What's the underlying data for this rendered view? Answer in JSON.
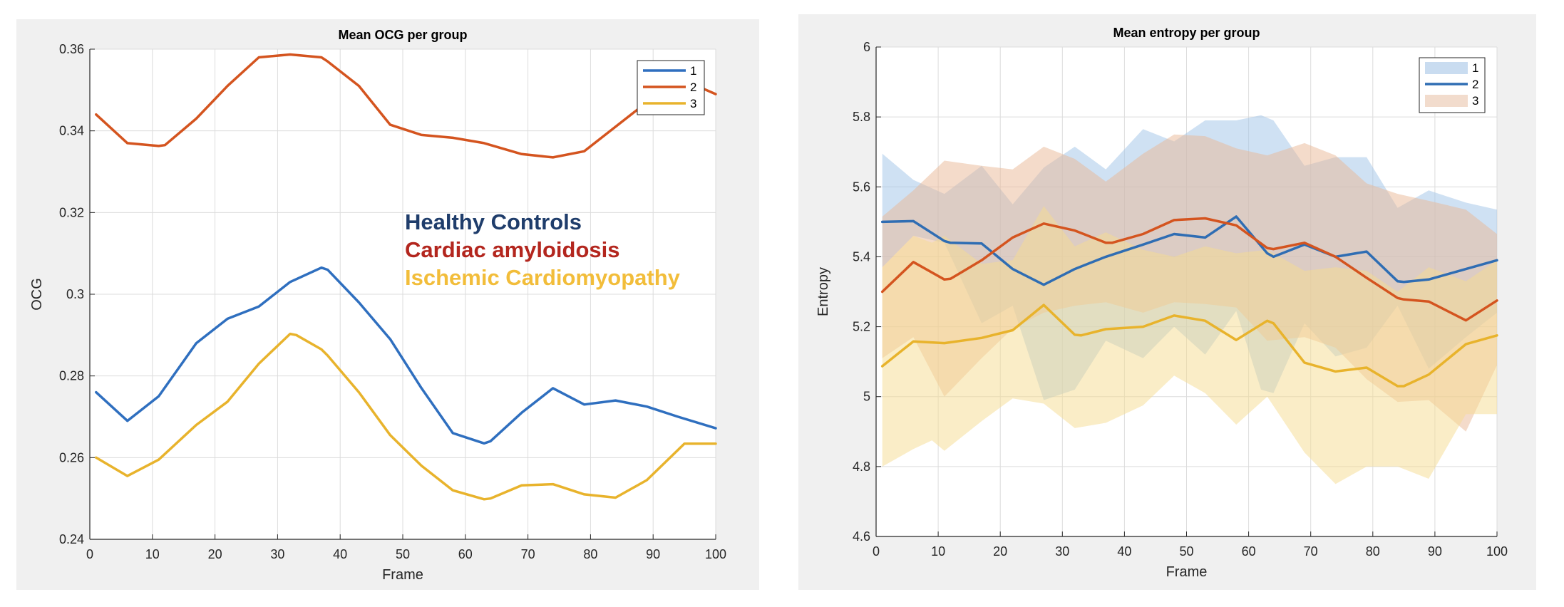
{
  "chart_data": [
    {
      "type": "line",
      "title": "Mean OCG per group",
      "xlabel": "Frame",
      "ylabel": "OCG",
      "xlim": [
        0,
        100
      ],
      "ylim": [
        0.24,
        0.36
      ],
      "xticks": [
        "0",
        "10",
        "20",
        "30",
        "40",
        "50",
        "60",
        "70",
        "80",
        "90",
        "100"
      ],
      "yticks": [
        "0.24",
        "0.26",
        "0.28",
        "0.3",
        "0.32",
        "0.34",
        "0.36"
      ],
      "grid": true,
      "legend_position": "top-right",
      "legend": [
        "1",
        "2",
        "3"
      ],
      "annotations": [
        {
          "text": "Healthy Controls",
          "color": "#1f3d6b"
        },
        {
          "text": "Cardiac amyloidosis",
          "color": "#b3261e"
        },
        {
          "text": "Ischemic Cardiomyopathy",
          "color": "#f2bd3a"
        }
      ],
      "series": [
        {
          "name": "1",
          "color": "#2f6fbf",
          "x": [
            1,
            6,
            11,
            17,
            22,
            27,
            32,
            37,
            38,
            43,
            48,
            53,
            58,
            60,
            63,
            64,
            69,
            74,
            79,
            84,
            89,
            94,
            100
          ],
          "y": [
            0.276,
            0.269,
            0.275,
            0.288,
            0.294,
            0.297,
            0.303,
            0.3065,
            0.306,
            0.298,
            0.289,
            0.277,
            0.266,
            0.265,
            0.2635,
            0.264,
            0.271,
            0.277,
            0.273,
            0.274,
            0.2725,
            0.27,
            0.2672
          ]
        },
        {
          "name": "2",
          "color": "#d4541f",
          "x": [
            1,
            6,
            11,
            12,
            17,
            22,
            27,
            32,
            37,
            38,
            43,
            48,
            53,
            58,
            63,
            69,
            74,
            79,
            84,
            89,
            94,
            100
          ],
          "y": [
            0.344,
            0.337,
            0.3363,
            0.3365,
            0.343,
            0.351,
            0.358,
            0.3587,
            0.358,
            0.357,
            0.351,
            0.3415,
            0.339,
            0.3383,
            0.337,
            0.3343,
            0.3335,
            0.335,
            0.341,
            0.347,
            0.353,
            0.349
          ]
        },
        {
          "name": "3",
          "color": "#e8b32c",
          "x": [
            1,
            6,
            11,
            17,
            22,
            27,
            32,
            33,
            37,
            38,
            43,
            48,
            53,
            58,
            63,
            64,
            69,
            74,
            79,
            84,
            89,
            95,
            100
          ],
          "y": [
            0.26,
            0.2555,
            0.2595,
            0.268,
            0.2737,
            0.283,
            0.2903,
            0.29,
            0.2865,
            0.285,
            0.276,
            0.2655,
            0.258,
            0.252,
            0.2498,
            0.25,
            0.2532,
            0.2535,
            0.251,
            0.2502,
            0.2545,
            0.2634,
            0.2634
          ]
        }
      ]
    },
    {
      "type": "area",
      "title": "Mean entropy per group",
      "xlabel": "Frame",
      "ylabel": "Entropy",
      "xlim": [
        0,
        100
      ],
      "ylim": [
        4.6,
        6
      ],
      "xticks": [
        "0",
        "10",
        "20",
        "30",
        "40",
        "50",
        "60",
        "70",
        "80",
        "90",
        "100"
      ],
      "yticks": [
        "4.6",
        "4.8",
        "5",
        "5.2",
        "5.4",
        "5.6",
        "5.8",
        "6"
      ],
      "grid": true,
      "legend_position": "top-right",
      "legend": [
        {
          "label": "1",
          "kind": "patch",
          "color": "#c9dcf0"
        },
        {
          "label": "2",
          "kind": "line",
          "color": "#2f6db3"
        },
        {
          "label": "3",
          "kind": "patch",
          "color": "#f2dccd"
        }
      ],
      "bands": [
        {
          "name": "group 1 band",
          "color": "#9fc3e8",
          "x": [
            1,
            6,
            11,
            17,
            22,
            27,
            32,
            37,
            43,
            48,
            53,
            58,
            62,
            64,
            69,
            74,
            79,
            84,
            89,
            95,
            100
          ],
          "upper": [
            5.695,
            5.62,
            5.58,
            5.66,
            5.55,
            5.655,
            5.715,
            5.65,
            5.765,
            5.73,
            5.79,
            5.79,
            5.805,
            5.79,
            5.66,
            5.685,
            5.685,
            5.54,
            5.59,
            5.555,
            5.535
          ],
          "lower": [
            5.37,
            5.46,
            5.44,
            5.21,
            5.26,
            4.99,
            5.02,
            5.16,
            5.11,
            5.2,
            5.12,
            5.245,
            5.02,
            5.01,
            5.21,
            5.115,
            5.14,
            5.26,
            5.08,
            5.17,
            5.24
          ]
        },
        {
          "name": "group 2 band",
          "color": "#eab796",
          "x": [
            1,
            6,
            11,
            17,
            22,
            27,
            32,
            37,
            43,
            48,
            53,
            58,
            63,
            69,
            74,
            79,
            84,
            89,
            95,
            100
          ],
          "upper": [
            5.515,
            5.59,
            5.675,
            5.66,
            5.65,
            5.715,
            5.68,
            5.615,
            5.695,
            5.75,
            5.745,
            5.71,
            5.69,
            5.725,
            5.69,
            5.61,
            5.58,
            5.56,
            5.535,
            5.465
          ],
          "lower": [
            5.11,
            5.17,
            5.0,
            5.11,
            5.195,
            5.24,
            5.26,
            5.27,
            5.24,
            5.27,
            5.265,
            5.255,
            5.16,
            5.17,
            5.14,
            5.05,
            4.985,
            4.99,
            4.9,
            5.09
          ]
        },
        {
          "name": "group 3 band",
          "color": "#f5dc90",
          "x": [
            1,
            6,
            9,
            11,
            17,
            22,
            27,
            32,
            37,
            43,
            48,
            53,
            58,
            63,
            69,
            74,
            79,
            84,
            89,
            95,
            100
          ],
          "upper": [
            5.37,
            5.46,
            5.44,
            5.46,
            5.38,
            5.39,
            5.545,
            5.43,
            5.47,
            5.42,
            5.4,
            5.43,
            5.41,
            5.42,
            5.36,
            5.37,
            5.36,
            5.3,
            5.37,
            5.33,
            5.39
          ],
          "lower": [
            4.8,
            4.85,
            4.875,
            4.845,
            4.93,
            4.995,
            4.98,
            4.91,
            4.925,
            4.975,
            5.06,
            5.01,
            4.92,
            5.0,
            4.84,
            4.75,
            4.8,
            4.8,
            4.765,
            4.95,
            4.95
          ]
        }
      ],
      "series": [
        {
          "name": "group 1 mean",
          "color": "#2f6db3",
          "x": [
            1,
            6,
            11,
            12,
            17,
            22,
            27,
            32,
            37,
            43,
            48,
            53,
            58,
            63,
            64,
            69,
            74,
            79,
            84,
            85,
            89,
            95,
            100
          ],
          "y": [
            5.5,
            5.502,
            5.445,
            5.44,
            5.438,
            5.365,
            5.32,
            5.365,
            5.4,
            5.435,
            5.465,
            5.455,
            5.515,
            5.41,
            5.4,
            5.435,
            5.4,
            5.415,
            5.33,
            5.328,
            5.335,
            5.365,
            5.39
          ]
        },
        {
          "name": "group 2 mean",
          "color": "#d4541f",
          "x": [
            1,
            6,
            11,
            12,
            17,
            22,
            27,
            32,
            37,
            38,
            43,
            48,
            53,
            58,
            63,
            64,
            69,
            74,
            79,
            84,
            85,
            89,
            95,
            100
          ],
          "y": [
            5.3,
            5.385,
            5.335,
            5.337,
            5.39,
            5.455,
            5.495,
            5.475,
            5.44,
            5.44,
            5.465,
            5.505,
            5.51,
            5.49,
            5.425,
            5.422,
            5.44,
            5.4,
            5.34,
            5.282,
            5.278,
            5.272,
            5.218,
            5.275
          ]
        },
        {
          "name": "group 3 mean",
          "color": "#e8b32c",
          "x": [
            1,
            6,
            11,
            17,
            22,
            27,
            32,
            33,
            37,
            43,
            48,
            53,
            58,
            63,
            64,
            69,
            74,
            79,
            84,
            85,
            89,
            95,
            100
          ],
          "y": [
            5.087,
            5.158,
            5.153,
            5.168,
            5.19,
            5.262,
            5.177,
            5.175,
            5.193,
            5.2,
            5.232,
            5.217,
            5.162,
            5.217,
            5.21,
            5.097,
            5.072,
            5.083,
            5.03,
            5.03,
            5.063,
            5.15,
            5.175
          ]
        }
      ]
    }
  ]
}
